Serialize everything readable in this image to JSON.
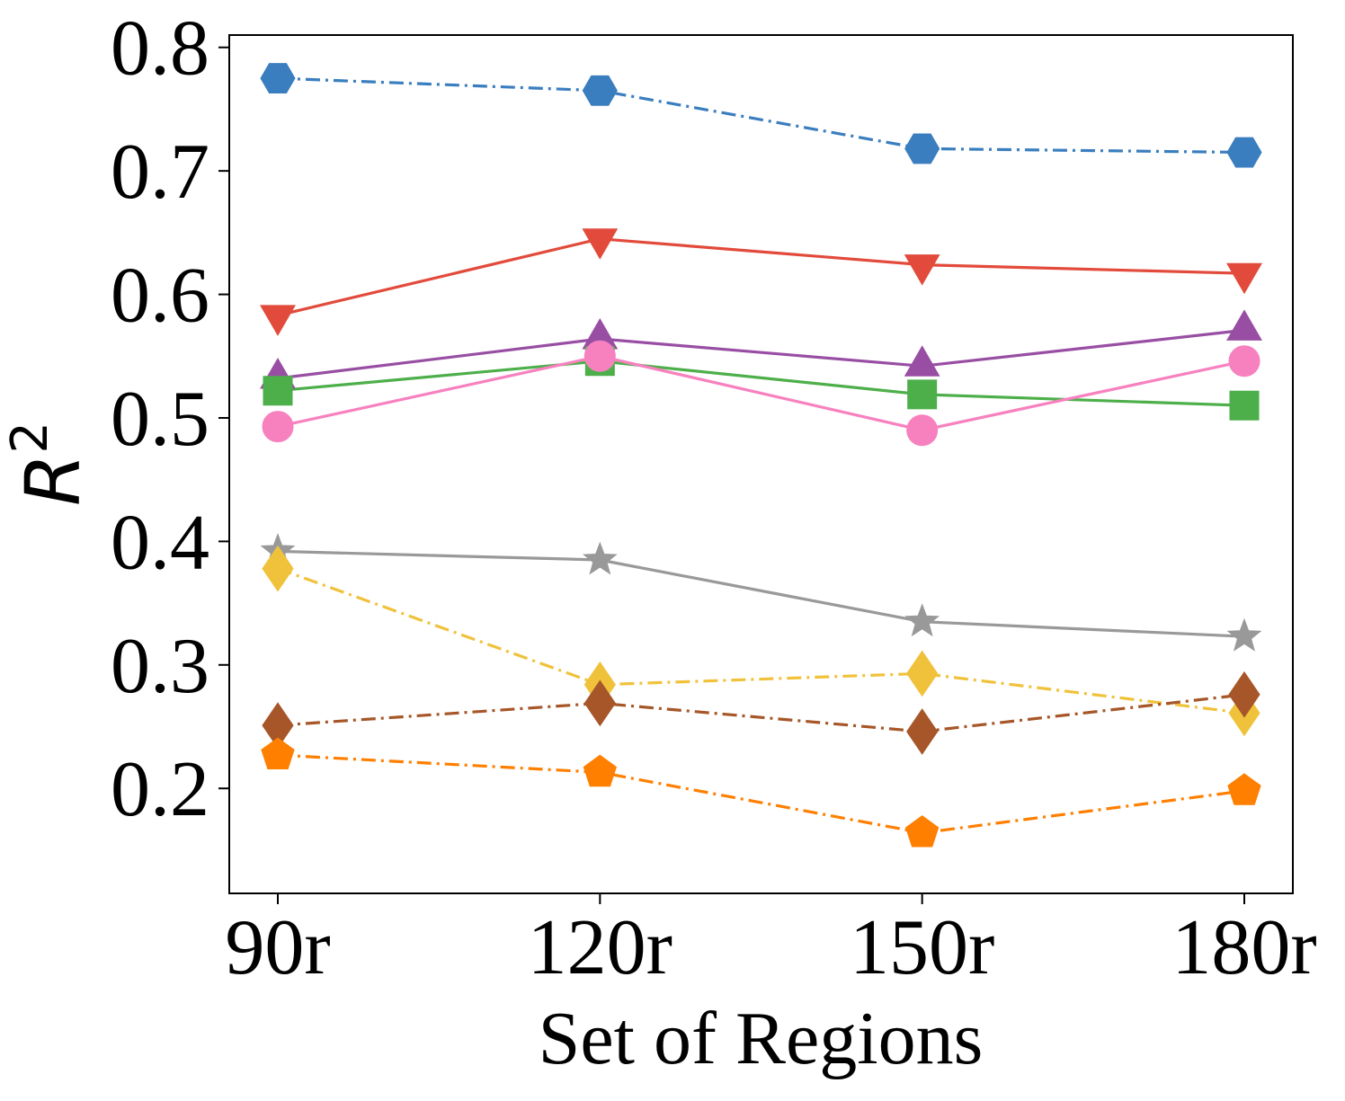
{
  "chart_data": {
    "type": "line",
    "title": "",
    "xlabel": "Set of Regions",
    "ylabel": "R",
    "ylabel_superscript": "2",
    "categories": [
      "90r",
      "120r",
      "150r",
      "180r"
    ],
    "ylim": [
      0.115,
      0.81
    ],
    "yticks": [
      {
        "value": 0.2,
        "label": "0.2"
      },
      {
        "value": 0.3,
        "label": "0.3"
      },
      {
        "value": 0.4,
        "label": "0.4"
      },
      {
        "value": 0.5,
        "label": "0.5"
      },
      {
        "value": 0.6,
        "label": "0.6"
      },
      {
        "value": 0.7,
        "label": "0.7"
      },
      {
        "value": 0.8,
        "label": "0.8"
      }
    ],
    "grid": false,
    "series": [
      {
        "name": "blue-hexagon",
        "color": "#3a7ebf",
        "marker": "hexagon",
        "dash": "dashdot",
        "values": [
          0.775,
          0.765,
          0.718,
          0.715
        ]
      },
      {
        "name": "red-triangle-down",
        "color": "#e24a3b",
        "marker": "triangle-down",
        "dash": "solid",
        "values": [
          0.583,
          0.645,
          0.624,
          0.617
        ]
      },
      {
        "name": "purple-triangle-up",
        "color": "#984ea3",
        "marker": "triangle-up",
        "dash": "solid",
        "values": [
          0.532,
          0.564,
          0.542,
          0.571
        ]
      },
      {
        "name": "green-square",
        "color": "#4daf4a",
        "marker": "square",
        "dash": "solid",
        "values": [
          0.522,
          0.546,
          0.519,
          0.51
        ]
      },
      {
        "name": "pink-circle",
        "color": "#f781bf",
        "marker": "circle",
        "dash": "solid",
        "values": [
          0.493,
          0.55,
          0.49,
          0.546
        ]
      },
      {
        "name": "gray-star",
        "color": "#999999",
        "marker": "star",
        "dash": "solid",
        "values": [
          0.392,
          0.385,
          0.335,
          0.323
        ]
      },
      {
        "name": "yellow-diamond",
        "color": "#f0c23b",
        "marker": "diamond",
        "dash": "dashdot",
        "values": [
          0.378,
          0.284,
          0.293,
          0.261
        ]
      },
      {
        "name": "brown-diamond",
        "color": "#a65628",
        "marker": "diamond",
        "dash": "dashdot",
        "values": [
          0.251,
          0.269,
          0.246,
          0.276
        ]
      },
      {
        "name": "orange-pentagon",
        "color": "#ff7f00",
        "marker": "pentagon",
        "dash": "dashdot",
        "values": [
          0.227,
          0.213,
          0.164,
          0.198
        ]
      }
    ]
  }
}
